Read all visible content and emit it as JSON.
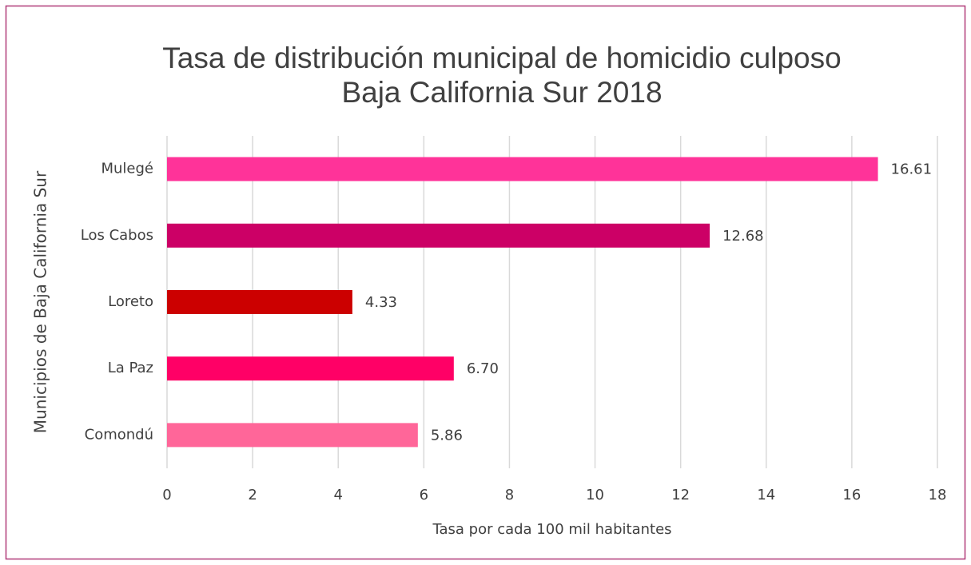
{
  "chart_data": {
    "type": "hbar",
    "title": [
      "Tasa de distribución municipal de homicidio culposo",
      "Baja California Sur 2018"
    ],
    "x_label": "Tasa por cada 100 mil habitantes",
    "y_label": "Municipios de Baja California Sur",
    "categories": [
      "Mulegé",
      "Los Cabos",
      "Loreto",
      "La Paz",
      "Comondú"
    ],
    "values": [
      16.61,
      12.68,
      4.33,
      6.7,
      5.86
    ],
    "value_labels": [
      "16.61",
      "12.68",
      "4.33",
      "6.70",
      "5.86"
    ],
    "colors": [
      "#ff3399",
      "#cc0066",
      "#cc0000",
      "#ff0066",
      "#ff6699"
    ],
    "xlim": [
      0,
      18
    ],
    "xticks": [
      0,
      2,
      4,
      6,
      8,
      10,
      12,
      14,
      16,
      18
    ],
    "grid": true
  }
}
